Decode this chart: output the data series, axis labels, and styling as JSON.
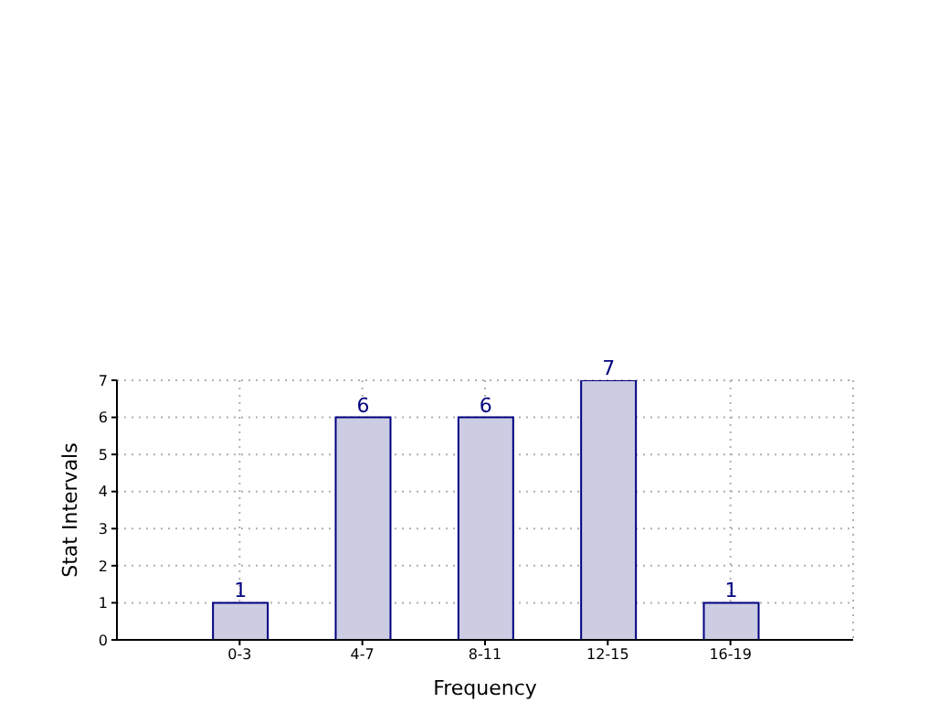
{
  "chart_data": {
    "type": "bar",
    "xlabel": "Frequency",
    "ylabel": "Stat Intervals",
    "categories": [
      "0-3",
      "4-7",
      "8-11",
      "12-15",
      "16-19"
    ],
    "values": [
      1,
      6,
      6,
      7,
      1
    ],
    "color": "#cccce3",
    "ylim": [
      0,
      7
    ],
    "yticks": [
      0,
      1,
      2,
      3,
      4,
      5,
      6,
      7
    ],
    "grid": true,
    "data_labels": true
  }
}
